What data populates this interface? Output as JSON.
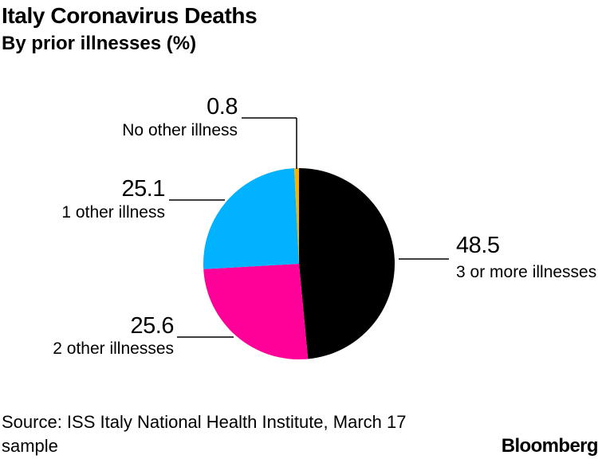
{
  "chart_data": {
    "type": "pie",
    "title": "Italy Coronavirus Deaths",
    "subtitle": "By prior illnesses (%)",
    "slices": [
      {
        "label": "3 or more illnesses",
        "value": 48.5,
        "value_label": "48.5",
        "color": "#000000"
      },
      {
        "label": "2 other illnesses",
        "value": 25.6,
        "value_label": "25.6",
        "color": "#ff0099"
      },
      {
        "label": "1 other illness",
        "value": 25.1,
        "value_label": "25.1",
        "color": "#00b2ff"
      },
      {
        "label": "No other illness",
        "value": 0.8,
        "value_label": "0.8",
        "color": "#f5b300"
      }
    ]
  },
  "source": "Source: ISS Italy National Health Institute, March 17 sample",
  "brand": "Bloomberg"
}
